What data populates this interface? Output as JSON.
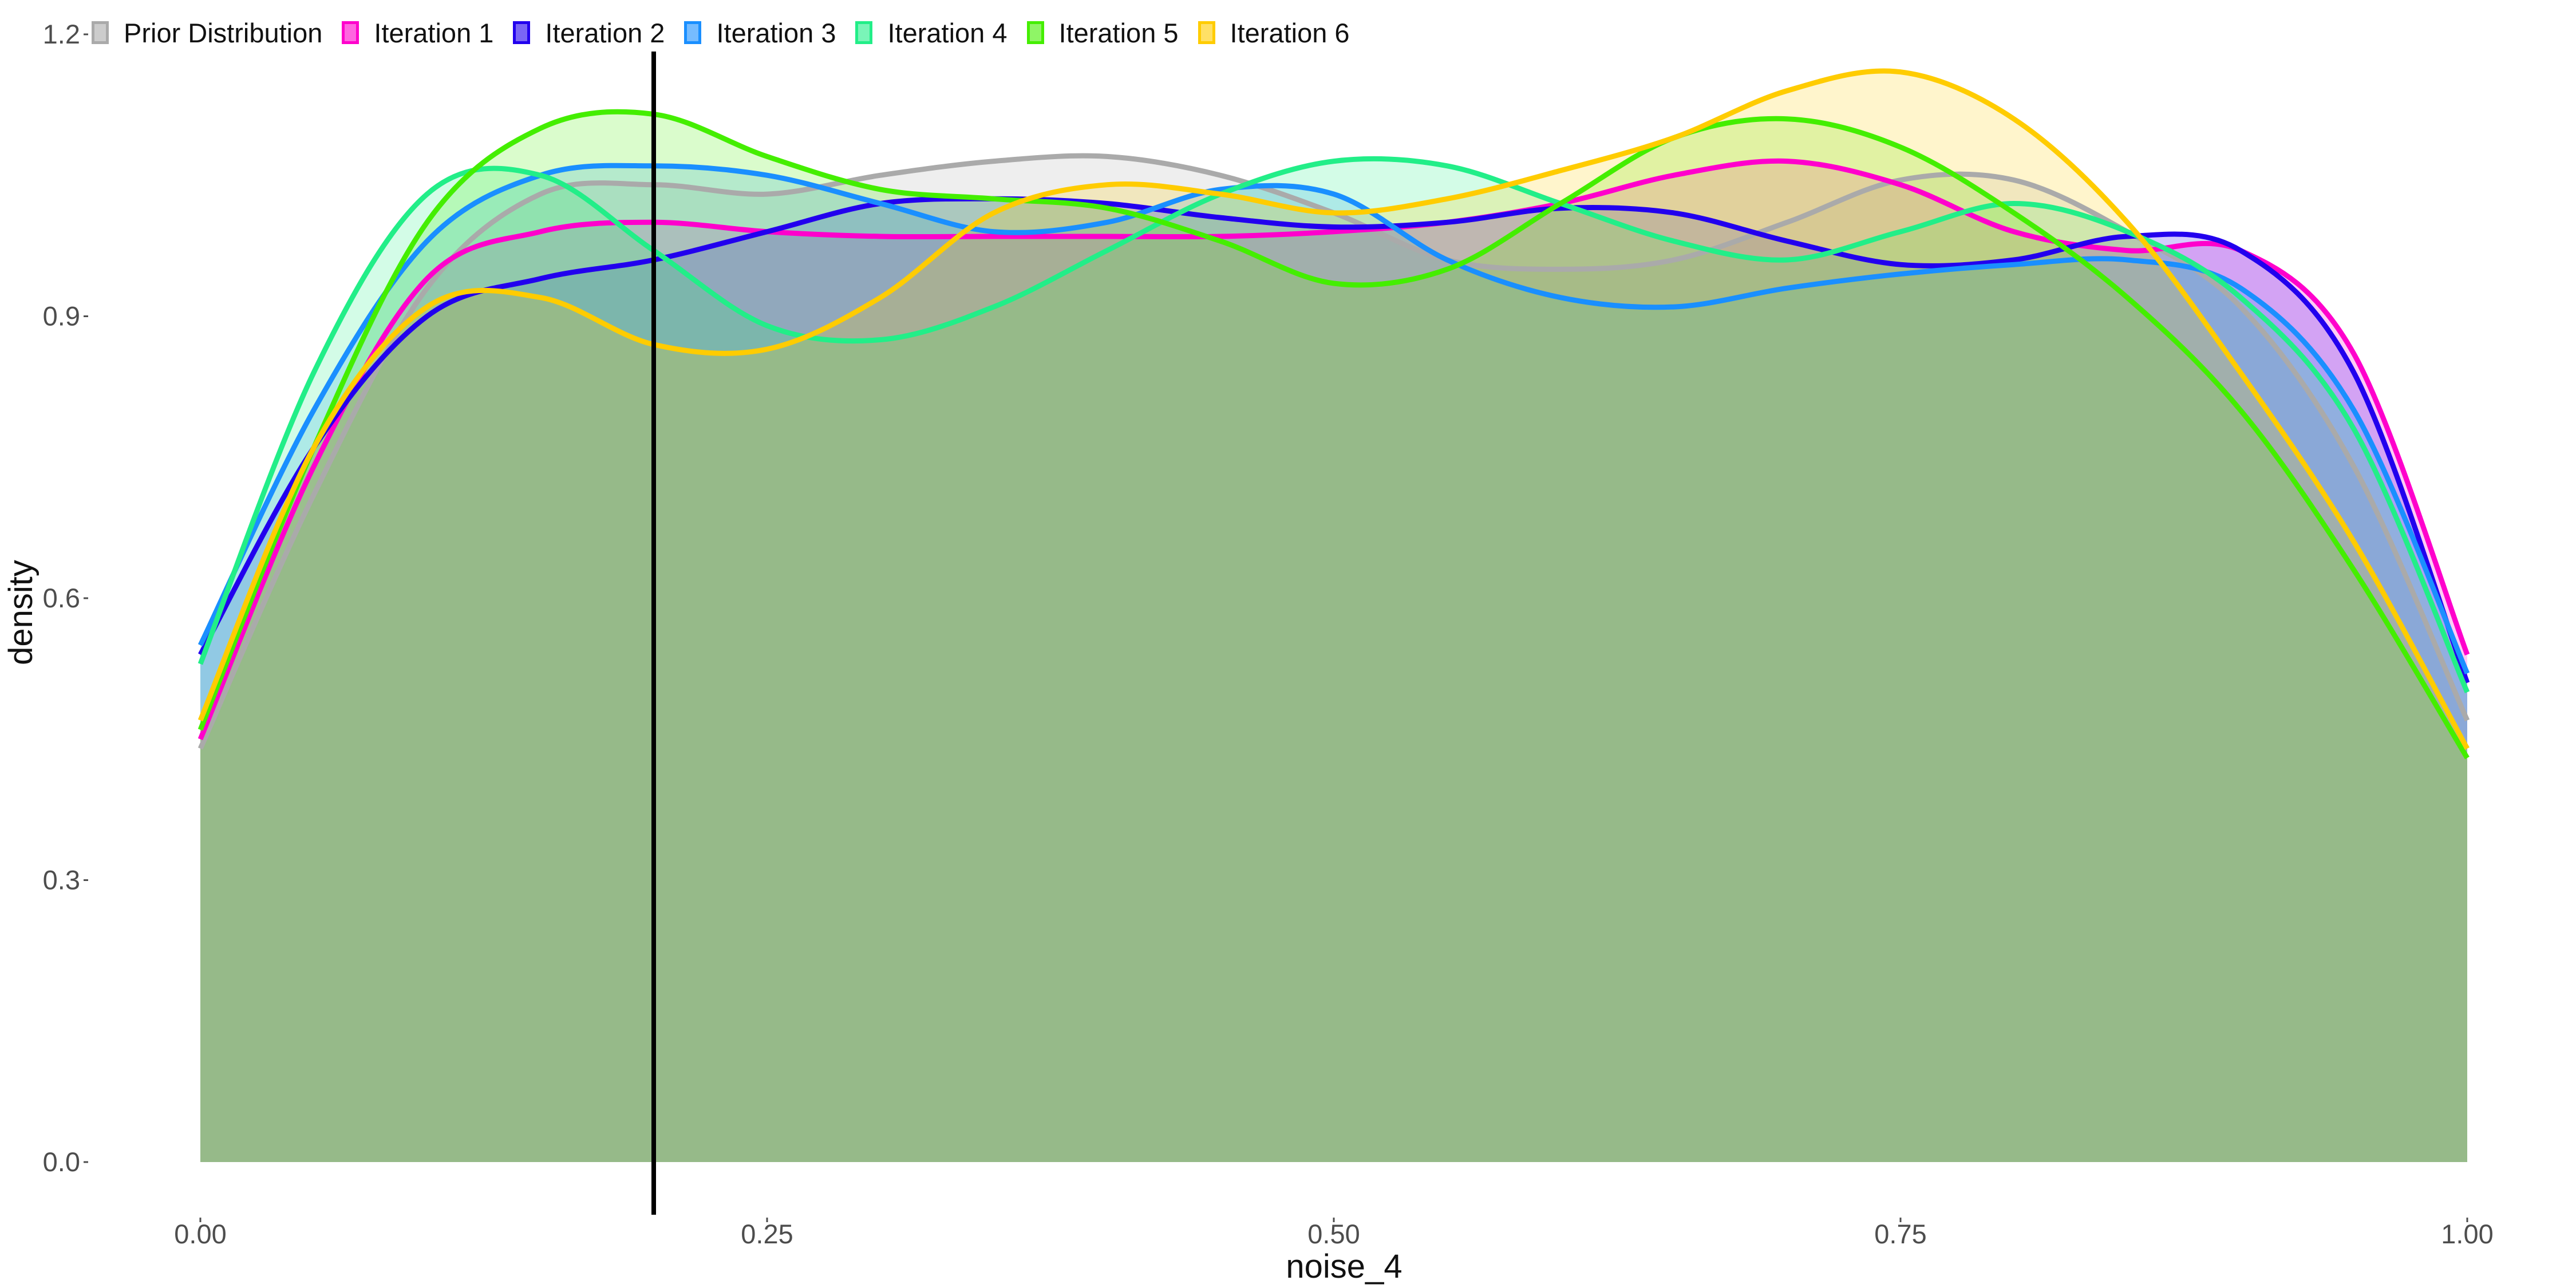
{
  "chart_data": {
    "type": "area",
    "xlabel": "noise_4",
    "ylabel": "density",
    "xlim": [
      0,
      1
    ],
    "ylim": [
      0,
      1.2
    ],
    "x_ticks": [
      "0.00",
      "0.25",
      "0.50",
      "0.75",
      "1.00"
    ],
    "y_ticks": [
      "0.0",
      "0.3",
      "0.6",
      "0.9",
      "1.2"
    ],
    "grid": false,
    "legend_position": "top-left",
    "reference_line_x": 0.2,
    "x": [
      0.0,
      0.05,
      0.1,
      0.15,
      0.2,
      0.25,
      0.3,
      0.35,
      0.4,
      0.45,
      0.5,
      0.55,
      0.6,
      0.65,
      0.7,
      0.75,
      0.8,
      0.85,
      0.9,
      0.95,
      1.0
    ],
    "series": [
      {
        "name": "Prior Distribution",
        "color": "#aaaaaa",
        "values": [
          0.44,
          0.71,
          0.93,
          1.03,
          1.04,
          1.03,
          1.05,
          1.065,
          1.07,
          1.05,
          1.01,
          0.96,
          0.95,
          0.96,
          1.0,
          1.045,
          1.045,
          0.99,
          0.91,
          0.74,
          0.47
        ]
      },
      {
        "name": "Iteration 1",
        "color": "#ff00cc",
        "values": [
          0.45,
          0.74,
          0.94,
          0.99,
          1.0,
          0.99,
          0.985,
          0.985,
          0.985,
          0.985,
          0.99,
          1.0,
          1.02,
          1.05,
          1.065,
          1.04,
          0.99,
          0.97,
          0.97,
          0.86,
          0.54
        ]
      },
      {
        "name": "Iteration 2",
        "color": "#2200ee",
        "values": [
          0.54,
          0.76,
          0.9,
          0.94,
          0.96,
          0.99,
          1.02,
          1.025,
          1.02,
          1.005,
          0.995,
          1.0,
          1.015,
          1.01,
          0.98,
          0.955,
          0.96,
          0.985,
          0.97,
          0.84,
          0.51
        ]
      },
      {
        "name": "Iteration 3",
        "color": "#1a8fff",
        "values": [
          0.55,
          0.8,
          0.98,
          1.05,
          1.06,
          1.05,
          1.02,
          0.99,
          1.0,
          1.035,
          1.03,
          0.96,
          0.92,
          0.91,
          0.93,
          0.945,
          0.955,
          0.96,
          0.93,
          0.8,
          0.52
        ]
      },
      {
        "name": "Iteration 4",
        "color": "#22ee88",
        "values": [
          0.53,
          0.84,
          1.03,
          1.05,
          0.97,
          0.89,
          0.875,
          0.91,
          0.97,
          1.03,
          1.065,
          1.06,
          1.02,
          0.98,
          0.96,
          0.99,
          1.02,
          0.99,
          0.92,
          0.78,
          0.5
        ]
      },
      {
        "name": "Iteration 5",
        "color": "#44ee00",
        "values": [
          0.46,
          0.76,
          1.0,
          1.1,
          1.115,
          1.07,
          1.035,
          1.025,
          1.015,
          0.98,
          0.935,
          0.95,
          1.02,
          1.09,
          1.11,
          1.08,
          1.01,
          0.92,
          0.8,
          0.63,
          0.43
        ]
      },
      {
        "name": "Iteration 6",
        "color": "#ffcc00",
        "values": [
          0.47,
          0.76,
          0.91,
          0.92,
          0.87,
          0.865,
          0.92,
          1.01,
          1.04,
          1.03,
          1.01,
          1.025,
          1.055,
          1.09,
          1.14,
          1.16,
          1.11,
          1.0,
          0.84,
          0.66,
          0.44
        ]
      }
    ]
  }
}
